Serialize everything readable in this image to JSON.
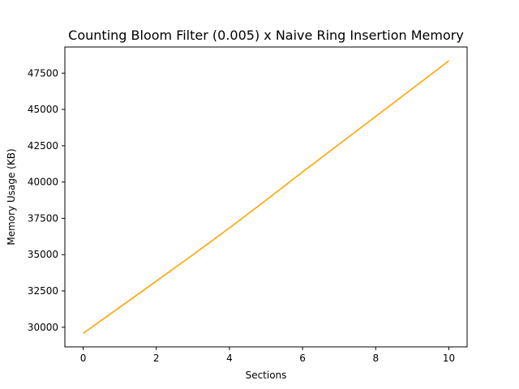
{
  "chart_data": {
    "type": "line",
    "title": "Counting Bloom Filter (0.005) x Naive Ring Insertion Memory",
    "xlabel": "Sections",
    "ylabel": "Memory Usage (KB)",
    "xlim": [
      -0.5,
      10.5
    ],
    "ylim": [
      28650,
      49300
    ],
    "x_ticks": [
      0,
      2,
      4,
      6,
      8,
      10
    ],
    "y_ticks": [
      30000,
      32500,
      35000,
      37500,
      40000,
      42500,
      45000,
      47500
    ],
    "grid": false,
    "legend": "none",
    "series": [
      {
        "color": "#ffa500",
        "x": [
          0,
          1,
          2,
          3,
          4,
          5,
          6,
          7,
          8,
          9,
          10
        ],
        "y": [
          29580,
          31380,
          33180,
          34990,
          36840,
          38750,
          40700,
          42610,
          44520,
          46430,
          48350
        ]
      }
    ]
  }
}
